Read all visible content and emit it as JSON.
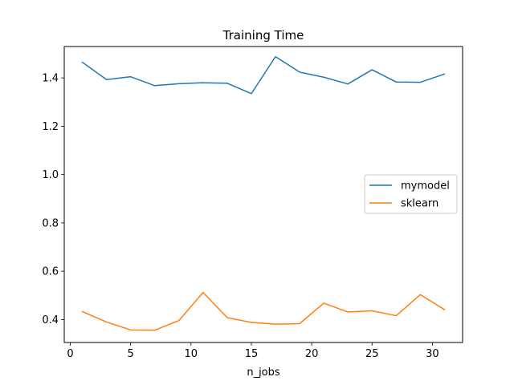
{
  "chart_data": {
    "type": "line",
    "title": "Training Time",
    "xlabel": "n_jobs",
    "ylabel": "",
    "x": [
      1,
      3,
      5,
      7,
      9,
      11,
      13,
      15,
      17,
      19,
      21,
      23,
      25,
      27,
      29,
      31
    ],
    "xlim": [
      -0.5,
      32.5
    ],
    "ylim": [
      0.305,
      1.53
    ],
    "xticks": [
      0,
      5,
      10,
      15,
      20,
      25,
      30
    ],
    "yticks": [
      0.4,
      0.6,
      0.8,
      1.0,
      1.2,
      1.4
    ],
    "ytick_labels": [
      "0.4",
      "0.6",
      "0.8",
      "1.0",
      "1.2",
      "1.4"
    ],
    "grid": false,
    "legend_position": "center-right",
    "series": [
      {
        "name": "mymodel",
        "color": "#1f77b4",
        "values": [
          1.465,
          1.393,
          1.405,
          1.368,
          1.376,
          1.38,
          1.378,
          1.335,
          1.488,
          1.424,
          1.403,
          1.375,
          1.434,
          1.383,
          1.382,
          1.416
        ]
      },
      {
        "name": "sklearn",
        "color": "#ff7f0e",
        "values": [
          0.433,
          0.39,
          0.357,
          0.356,
          0.396,
          0.512,
          0.408,
          0.388,
          0.381,
          0.383,
          0.468,
          0.431,
          0.436,
          0.416,
          0.503,
          0.441
        ]
      }
    ]
  }
}
